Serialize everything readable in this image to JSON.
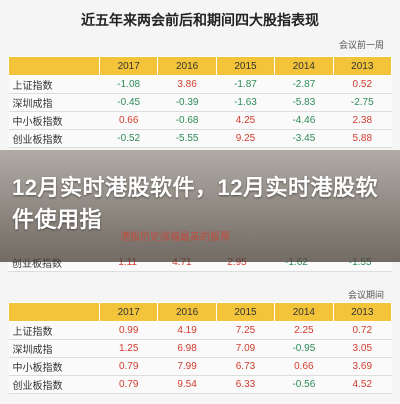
{
  "title": "近五年来两会前后和期间四大股指表现",
  "caption_top": "会议前一周",
  "caption_bottom": "会议期间",
  "overlay_text": "12月实时港股软件，12月实时港股软件使用指",
  "overlay_subtext": "港股历史涨幅最高的股票",
  "years": [
    "2017",
    "2016",
    "2015",
    "2014",
    "2013"
  ],
  "table1": [
    {
      "name": "上证指数",
      "values": [
        "-1.08",
        "3.86",
        "-1.87",
        "-2.87",
        "0.52"
      ]
    },
    {
      "name": "深圳成指",
      "values": [
        "-0.45",
        "-0.39",
        "-1.63",
        "-5.83",
        "-2.75"
      ]
    },
    {
      "name": "中小板指数",
      "values": [
        "0.66",
        "-0.68",
        "4.25",
        "-4.46",
        "2.38"
      ]
    },
    {
      "name": "创业板指数",
      "values": [
        "-0.52",
        "-5.55",
        "9.25",
        "-3.45",
        "5.88"
      ]
    }
  ],
  "table_mid_partial": [
    {
      "name": "创业板指数",
      "values": [
        "1.11",
        "4.71",
        "2.95",
        "-1.62",
        "-1.55"
      ]
    }
  ],
  "table2": [
    {
      "name": "上证指数",
      "values": [
        "0.99",
        "4.19",
        "7.25",
        "2.25",
        "0.72"
      ]
    },
    {
      "name": "深圳成指",
      "values": [
        "1.25",
        "6.98",
        "7.09",
        "-0.95",
        "3.05"
      ]
    },
    {
      "name": "中小板指数",
      "values": [
        "0.79",
        "7.99",
        "6.73",
        "0.66",
        "3.69"
      ]
    },
    {
      "name": "创业板指数",
      "values": [
        "0.79",
        "9.54",
        "6.33",
        "-0.56",
        "4.52"
      ]
    }
  ],
  "colors": {
    "header": "#f3c43a",
    "positive": "#d23b2e",
    "negative": "#2e8b57"
  }
}
